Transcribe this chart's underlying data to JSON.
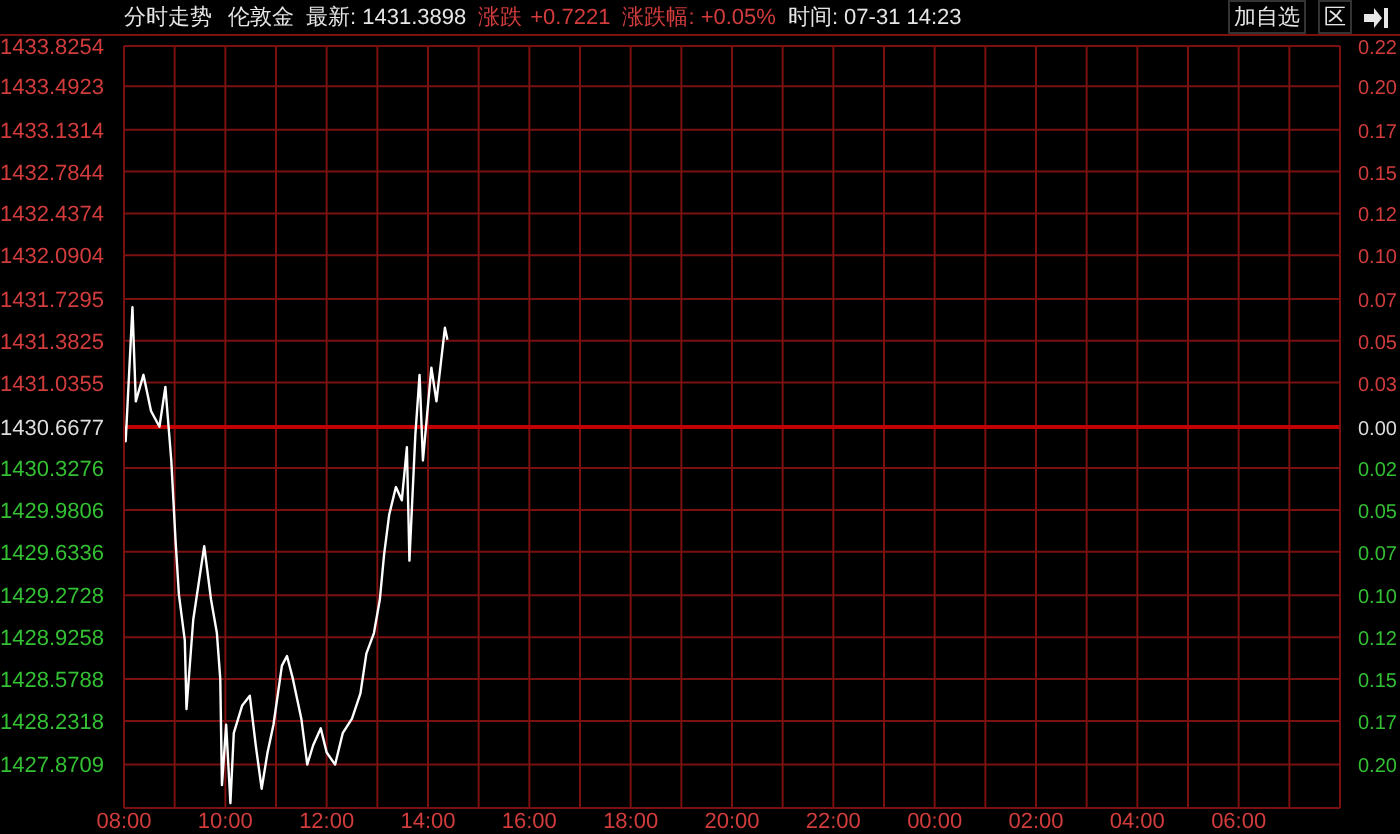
{
  "chart_data": {
    "type": "line",
    "title": "分时走势",
    "annotations": [
      "伦敦金",
      "最新: 1431.3898",
      "涨跌",
      "+0.7221",
      "涨跌幅: +0.05%",
      "时间: 07-31 14:23",
      "加自选",
      "区"
    ],
    "x": [
      "--07-31T08:00",
      "--07-31T08:02",
      "--07-31T08:10",
      "--07-31T08:14",
      "--07-31T08:23",
      "--07-31T08:32",
      "--07-31T08:42",
      "--07-31T08:49",
      "--07-31T08:56",
      "--07-31T09:01",
      "--07-31T09:05",
      "--07-31T09:12",
      "--07-31T09:14",
      "--07-31T09:22",
      "--07-31T09:29",
      "--07-31T09:35",
      "--07-31T09:43",
      "--07-31T09:50",
      "--07-31T09:54",
      "--07-31T09:56",
      "--07-31T10:01",
      "--07-31T10:06",
      "--07-31T10:10",
      "--07-31T10:20",
      "--07-31T10:29",
      "--07-31T10:36",
      "--07-31T10:43",
      "--07-31T10:50",
      "--07-31T10:57",
      "--07-31T11:07",
      "--07-31T11:13",
      "--07-31T11:20",
      "--07-31T11:30",
      "--07-31T11:37",
      "--07-31T11:44",
      "--07-31T11:53",
      "--07-31T12:00",
      "--07-31T12:10",
      "--07-31T12:19",
      "--07-31T12:30",
      "--07-31T12:40",
      "--07-31T12:47",
      "--07-31T12:56",
      "--07-31T13:03",
      "--07-31T13:08",
      "--07-31T13:14",
      "--07-31T13:22",
      "--07-31T13:29",
      "--07-31T13:35",
      "--07-31T13:38",
      "--07-31T13:45",
      "--07-31T13:50",
      "--07-31T13:54",
      "--07-31T14:04",
      "--07-31T14:10",
      "--07-31T14:20",
      "--07-31T14:23"
    ],
    "series": [
      {
        "color": "#ffffff",
        "values": [
          1430.67,
          1430.55,
          1431.66,
          1430.88,
          1431.1,
          1430.8,
          1430.67,
          1431.0,
          1430.39,
          1429.73,
          1429.28,
          1428.9,
          1428.33,
          1429.07,
          1429.4,
          1429.68,
          1429.24,
          1428.96,
          1428.58,
          1427.7,
          1428.2,
          1427.55,
          1428.13,
          1428.36,
          1428.44,
          1428.03,
          1427.67,
          1427.97,
          1428.2,
          1428.69,
          1428.77,
          1428.58,
          1428.25,
          1427.87,
          1428.03,
          1428.17,
          1427.97,
          1427.87,
          1428.13,
          1428.25,
          1428.46,
          1428.79,
          1428.96,
          1429.24,
          1429.61,
          1429.94,
          1430.17,
          1430.06,
          1430.5,
          1429.56,
          1430.6,
          1431.1,
          1430.39,
          1431.16,
          1430.88,
          1431.49,
          1431.39
        ]
      }
    ],
    "xlim": [
      "--07-31T08:00",
      "--08-01T08:00"
    ],
    "xticks": [
      {
        "value": "--07-31T08:00",
        "label": "08:00"
      },
      {
        "value": "--07-31T09:00",
        "label": null
      },
      {
        "value": "--07-31T10:00",
        "label": "10:00"
      },
      {
        "value": "--07-31T11:00",
        "label": null
      },
      {
        "value": "--07-31T12:00",
        "label": "12:00"
      },
      {
        "value": "--07-31T13:00",
        "label": null
      },
      {
        "value": "--07-31T14:00",
        "label": "14:00"
      },
      {
        "value": "--07-31T15:00",
        "label": null
      },
      {
        "value": "--07-31T16:00",
        "label": "16:00"
      },
      {
        "value": "--07-31T17:00",
        "label": null
      },
      {
        "value": "--07-31T18:00",
        "label": "18:00"
      },
      {
        "value": "--07-31T19:00",
        "label": null
      },
      {
        "value": "--07-31T20:00",
        "label": "20:00"
      },
      {
        "value": "--07-31T21:00",
        "label": null
      },
      {
        "value": "--07-31T22:00",
        "label": "22:00"
      },
      {
        "value": "--07-31T23:00",
        "label": null
      },
      {
        "value": "--08-01T00:00",
        "label": "00:00"
      },
      {
        "value": "--08-01T01:00",
        "label": null
      },
      {
        "value": "--08-01T02:00",
        "label": "02:00"
      },
      {
        "value": "--08-01T03:00",
        "label": null
      },
      {
        "value": "--08-01T04:00",
        "label": "04:00"
      },
      {
        "value": "--08-01T05:00",
        "label": null
      },
      {
        "value": "--08-01T06:00",
        "label": "06:00"
      },
      {
        "value": "--08-01T07:00",
        "label": null
      },
      {
        "value": "--08-01T08:00",
        "label": null
      }
    ],
    "ylim": [
      1427.51,
      1433.8254
    ],
    "yticks": [
      1433.8254,
      1433.4923,
      1433.1314,
      1432.7844,
      1432.4374,
      1432.0904,
      1431.7295,
      1431.3825,
      1431.0355,
      1430.6677,
      1430.3276,
      1429.9806,
      1429.6336,
      1429.2728,
      1428.9258,
      1428.5788,
      1428.2318,
      1427.8709
    ],
    "y2lim": [
      -0.2207,
      0.2207
    ],
    "y2ticks": [
      {
        "value": 0.2207,
        "label": "0.22"
      },
      {
        "value": 0.1974,
        "label": "0.20"
      },
      {
        "value": 0.1722,
        "label": "0.17"
      },
      {
        "value": 0.148,
        "label": "0.15"
      },
      {
        "value": 0.1237,
        "label": "0.12"
      },
      {
        "value": 0.0994,
        "label": "0.10"
      },
      {
        "value": 0.0742,
        "label": "0.07"
      },
      {
        "value": 0.05,
        "label": "0.05"
      },
      {
        "value": 0.0257,
        "label": "0.03"
      },
      {
        "value": 0,
        "label": "0.00"
      },
      {
        "value": -0.0238,
        "label": "0.02"
      },
      {
        "value": -0.048,
        "label": "0.05"
      },
      {
        "value": -0.0723,
        "label": "0.07"
      },
      {
        "value": -0.0975,
        "label": "0.10"
      },
      {
        "value": -0.1218,
        "label": "0.12"
      },
      {
        "value": -0.146,
        "label": "0.15"
      },
      {
        "value": -0.1703,
        "label": "0.17"
      },
      {
        "value": -0.1955,
        "label": "0.20"
      }
    ],
    "ref_lines": [
      {
        "axis": "y",
        "value": 1430.6677,
        "color": "#c00000"
      }
    ],
    "grid": true,
    "marker": "none",
    "line_style": "solid"
  }
}
